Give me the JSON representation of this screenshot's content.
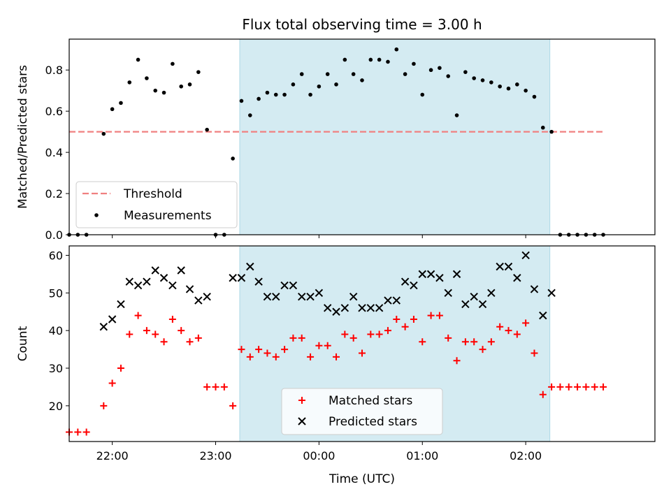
{
  "title": "Flux total observing time = 3.00 h",
  "colors": {
    "threshold": "#f08080",
    "measurements": "#000000",
    "matched": "#ff0000",
    "predicted": "#000000",
    "shade": "#add8e6"
  },
  "chart_data": [
    {
      "type": "scatter",
      "ylabel": "Matched/Predicted stars",
      "xlim": [
        "21:35",
        "03:15"
      ],
      "ylim": [
        0,
        0.95
      ],
      "yticks": [
        "0.0",
        "0.2",
        "0.4",
        "0.6",
        "0.8"
      ],
      "shaded_span": [
        "23:14",
        "02:14"
      ],
      "legend_position": "lower-left",
      "threshold": {
        "name": "Threshold",
        "x": [
          "21:35",
          "02:45"
        ],
        "y": 0.5
      },
      "series": [
        {
          "name": "Measurements",
          "x": [
            "21:35",
            "21:40",
            "21:45",
            "21:55",
            "22:00",
            "22:05",
            "22:10",
            "22:15",
            "22:20",
            "22:25",
            "22:30",
            "22:35",
            "22:40",
            "22:45",
            "22:50",
            "22:55",
            "23:00",
            "23:05",
            "23:10",
            "23:15",
            "23:20",
            "23:25",
            "23:30",
            "23:35",
            "23:40",
            "23:45",
            "23:50",
            "23:55",
            "00:00",
            "00:05",
            "00:10",
            "00:15",
            "00:20",
            "00:25",
            "00:30",
            "00:35",
            "00:40",
            "00:45",
            "00:50",
            "00:55",
            "01:00",
            "01:05",
            "01:10",
            "01:15",
            "01:20",
            "01:25",
            "01:30",
            "01:35",
            "01:40",
            "01:45",
            "01:50",
            "01:55",
            "02:00",
            "02:05",
            "02:10",
            "02:15",
            "02:20",
            "02:25",
            "02:30",
            "02:35",
            "02:40",
            "02:45"
          ],
          "y": [
            0,
            0,
            0,
            0.49,
            0.61,
            0.64,
            0.74,
            0.85,
            0.76,
            0.7,
            0.69,
            0.83,
            0.72,
            0.73,
            0.79,
            0.51,
            0,
            0,
            0.37,
            0.65,
            0.58,
            0.66,
            0.69,
            0.68,
            0.68,
            0.73,
            0.78,
            0.68,
            0.72,
            0.78,
            0.73,
            0.85,
            0.78,
            0.75,
            0.85,
            0.85,
            0.84,
            0.9,
            0.78,
            0.83,
            0.68,
            0.8,
            0.81,
            0.77,
            0.58,
            0.79,
            0.76,
            0.75,
            0.74,
            0.72,
            0.71,
            0.73,
            0.7,
            0.67,
            0.52,
            0.5,
            0,
            0,
            0,
            0,
            0,
            0
          ]
        }
      ]
    },
    {
      "type": "scatter",
      "xlabel": "Time (UTC)",
      "ylabel": "Count",
      "xlim": [
        "21:35",
        "03:15"
      ],
      "ylim": [
        10.5,
        62.5
      ],
      "xticks": [
        "22:00",
        "23:00",
        "00:00",
        "01:00",
        "02:00"
      ],
      "yticks": [
        "20",
        "30",
        "40",
        "50",
        "60"
      ],
      "shaded_span": [
        "23:14",
        "02:14"
      ],
      "legend_position": "lower-center",
      "series": [
        {
          "name": "Matched stars",
          "x": [
            "21:35",
            "21:40",
            "21:45",
            "21:55",
            "22:00",
            "22:05",
            "22:10",
            "22:15",
            "22:20",
            "22:25",
            "22:30",
            "22:35",
            "22:40",
            "22:45",
            "22:50",
            "22:55",
            "23:00",
            "23:05",
            "23:10",
            "23:15",
            "23:20",
            "23:25",
            "23:30",
            "23:35",
            "23:40",
            "23:45",
            "23:50",
            "23:55",
            "00:00",
            "00:05",
            "00:10",
            "00:15",
            "00:20",
            "00:25",
            "00:30",
            "00:35",
            "00:40",
            "00:45",
            "00:50",
            "00:55",
            "01:00",
            "01:05",
            "01:10",
            "01:15",
            "01:20",
            "01:25",
            "01:30",
            "01:35",
            "01:40",
            "01:45",
            "01:50",
            "01:55",
            "02:00",
            "02:05",
            "02:10",
            "02:15",
            "02:20",
            "02:25",
            "02:30",
            "02:35",
            "02:40",
            "02:45"
          ],
          "y": [
            13,
            13,
            13,
            20,
            26,
            30,
            39,
            44,
            40,
            39,
            37,
            43,
            40,
            37,
            38,
            25,
            25,
            25,
            20,
            35,
            33,
            35,
            34,
            33,
            35,
            38,
            38,
            33,
            36,
            36,
            33,
            39,
            38,
            34,
            39,
            39,
            40,
            43,
            41,
            43,
            37,
            44,
            44,
            38,
            32,
            37,
            37,
            35,
            37,
            41,
            40,
            39,
            42,
            34,
            23,
            25,
            25,
            25,
            25,
            25,
            25,
            25
          ]
        },
        {
          "name": "Predicted stars",
          "x": [
            "21:55",
            "22:00",
            "22:05",
            "22:10",
            "22:15",
            "22:20",
            "22:25",
            "22:30",
            "22:35",
            "22:40",
            "22:45",
            "22:50",
            "22:55",
            "23:10",
            "23:15",
            "23:20",
            "23:25",
            "23:30",
            "23:35",
            "23:40",
            "23:45",
            "23:50",
            "23:55",
            "00:00",
            "00:05",
            "00:10",
            "00:15",
            "00:20",
            "00:25",
            "00:30",
            "00:35",
            "00:40",
            "00:45",
            "00:50",
            "00:55",
            "01:00",
            "01:05",
            "01:10",
            "01:15",
            "01:20",
            "01:25",
            "01:30",
            "01:35",
            "01:40",
            "01:45",
            "01:50",
            "01:55",
            "02:00",
            "02:05",
            "02:10",
            "02:15"
          ],
          "y": [
            41,
            43,
            47,
            53,
            52,
            53,
            56,
            54,
            52,
            56,
            51,
            48,
            49,
            54,
            54,
            57,
            53,
            49,
            49,
            52,
            52,
            49,
            49,
            50,
            46,
            45,
            46,
            49,
            46,
            46,
            46,
            48,
            48,
            53,
            52,
            55,
            55,
            54,
            50,
            55,
            47,
            49,
            47,
            50,
            57,
            57,
            54,
            60,
            51,
            44,
            50
          ]
        }
      ]
    }
  ]
}
